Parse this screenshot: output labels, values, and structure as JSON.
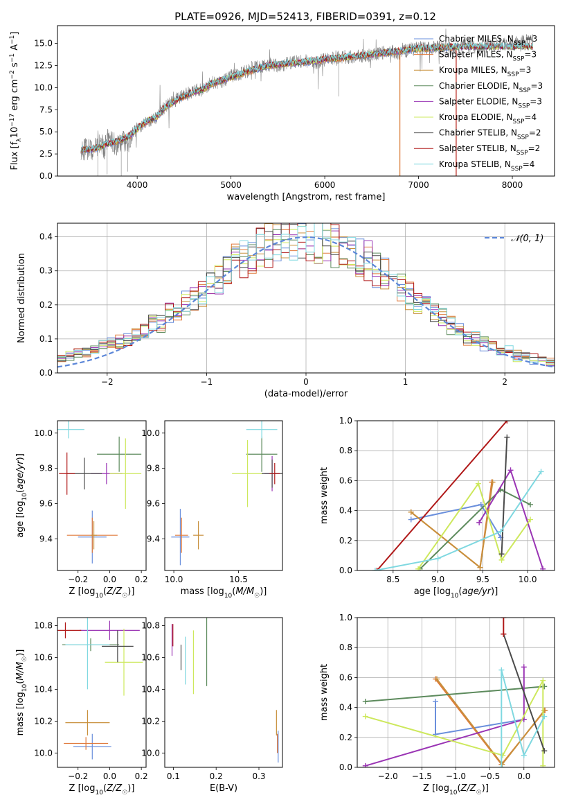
{
  "figure": {
    "title": "PLATE=0926, MJD=52413, FIBERID=0391, z=0.12"
  },
  "models": [
    {
      "name": "Chabrier MILES",
      "nssp": "3",
      "color": "#6a8fdc"
    },
    {
      "name": "Salpeter MILES",
      "nssp": "3",
      "color": "#e07a3c"
    },
    {
      "name": "Kroupa MILES",
      "nssp": "3",
      "color": "#c8903c"
    },
    {
      "name": "Chabrier ELODIE",
      "nssp": "3",
      "color": "#5c8a5c"
    },
    {
      "name": "Salpeter ELODIE",
      "nssp": "3",
      "color": "#9a34b4"
    },
    {
      "name": "Kroupa ELODIE",
      "nssp": "4",
      "color": "#cde85c"
    },
    {
      "name": "Chabrier STELIB",
      "nssp": "2",
      "color": "#4a4a4a"
    },
    {
      "name": "Salpeter STELIB",
      "nssp": "2",
      "color": "#b01818"
    },
    {
      "name": "Kroupa STELIB",
      "nssp": "4",
      "color": "#7fd8e0"
    }
  ],
  "data_color": "#808080",
  "chart_data": [
    {
      "id": "spectrum",
      "type": "line",
      "xlabel": "wavelength [Angstrom, rest frame]",
      "ylabel": "Flux [f_λ10^-17 erg cm^-2 s^-1 A^-1]",
      "xlim": [
        3150,
        8450
      ],
      "ylim": [
        0,
        17
      ],
      "xticks": [
        4000,
        5000,
        6000,
        7000,
        8000
      ],
      "yticks": [
        0.0,
        2.5,
        5.0,
        7.5,
        10.0,
        12.5,
        15.0
      ],
      "grid": false,
      "legend": "top-right",
      "series": [
        {
          "name": "data",
          "x": [
            3400,
            3500,
            3550,
            3600,
            3650,
            3700,
            3750,
            3800,
            3850,
            3900,
            3950,
            4000,
            4100,
            4200,
            4300,
            4400,
            4500,
            4600,
            4700,
            4800,
            4900,
            5000,
            5100,
            5200,
            5300,
            5400,
            5500,
            5600,
            5700,
            5800,
            5900,
            6000,
            6100,
            6200,
            6300,
            6400,
            6500,
            6600,
            6700,
            6800,
            6900,
            7000,
            7100,
            7200,
            7300,
            7400,
            7500,
            7600,
            7700,
            7800,
            7900,
            8000,
            8100,
            8200
          ],
          "y": [
            3.1,
            2.9,
            3.2,
            3.8,
            3.2,
            4.6,
            3.8,
            3.3,
            4.0,
            3.6,
            4.8,
            5.4,
            6.2,
            6.6,
            7.9,
            8.6,
            9.1,
            9.6,
            9.8,
            10.6,
            10.7,
            11.3,
            11.5,
            12.0,
            12.4,
            12.6,
            12.5,
            12.7,
            12.9,
            13.0,
            12.8,
            13.2,
            13.4,
            13.5,
            13.4,
            13.6,
            13.7,
            13.9,
            14.1,
            13.9,
            14.3,
            14.5,
            14.4,
            14.6,
            14.4,
            14.6,
            14.8,
            14.5,
            14.7,
            14.8,
            14.9,
            15.0,
            15.2,
            15.4
          ]
        },
        {
          "name": "model",
          "x": [
            3400,
            3500,
            3600,
            3700,
            3800,
            3900,
            4000,
            4100,
            4200,
            4300,
            4400,
            4500,
            4600,
            4700,
            4800,
            4900,
            5000,
            5200,
            5400,
            5600,
            5800,
            6000,
            6200,
            6400,
            6600,
            6800,
            7000,
            7200,
            7400
          ],
          "y": [
            3.0,
            3.0,
            3.3,
            3.7,
            4.0,
            4.4,
            5.3,
            6.2,
            6.6,
            7.8,
            8.5,
            9.0,
            9.5,
            9.8,
            10.5,
            10.8,
            11.2,
            11.9,
            12.5,
            12.7,
            12.9,
            13.2,
            13.4,
            13.6,
            13.9,
            14.1,
            14.4,
            14.5,
            14.6
          ]
        }
      ]
    },
    {
      "id": "residuals",
      "type": "line",
      "xlabel": "(data-model)/error",
      "ylabel": "Normed distribution",
      "xlim": [
        -2.5,
        2.5
      ],
      "ylim": [
        0,
        0.44
      ],
      "xticks": [
        -2,
        -1,
        0,
        1,
        2
      ],
      "yticks": [
        0.0,
        0.1,
        0.2,
        0.3,
        0.4
      ],
      "grid": true,
      "legend": "top-right",
      "legend_label": "𝒩(0, 1)",
      "curve": "standard normal pdf",
      "curve_color": "#5b86d8",
      "bin_width": 0.1,
      "hist_base": [
        0.05,
        0.05,
        0.06,
        0.06,
        0.07,
        0.08,
        0.09,
        0.09,
        0.1,
        0.11,
        0.12,
        0.14,
        0.15,
        0.17,
        0.19,
        0.2,
        0.22,
        0.24,
        0.26,
        0.28,
        0.3,
        0.32,
        0.34,
        0.35,
        0.37,
        0.38,
        0.39,
        0.39,
        0.39,
        0.4,
        0.4,
        0.39,
        0.39,
        0.38,
        0.37,
        0.36,
        0.34,
        0.33,
        0.31,
        0.29,
        0.27,
        0.25,
        0.23,
        0.21,
        0.19,
        0.18,
        0.16,
        0.14,
        0.13,
        0.11,
        0.1,
        0.09,
        0.08,
        0.07,
        0.06,
        0.05,
        0.05,
        0.04,
        0.04,
        0.03
      ]
    },
    {
      "id": "age-vs-Z",
      "type": "scatter",
      "xlabel": "Z [log10(Z/Z☉)]",
      "ylabel": "age  [log10(age/yr)]",
      "xlim": [
        -0.33,
        0.23
      ],
      "ylim": [
        9.22,
        10.07
      ],
      "xticks": [
        -0.2,
        0.0,
        0.2
      ],
      "yticks": [
        9.4,
        9.6,
        9.8,
        10.0
      ],
      "grid": false,
      "points": [
        {
          "x": -0.11,
          "y": 9.41,
          "xerr": 0.09,
          "yerr": 0.15,
          "model": 0
        },
        {
          "x": -0.11,
          "y": 9.42,
          "xerr": 0.16,
          "yerr": 0.1,
          "model": 1
        },
        {
          "x": -0.1,
          "y": 9.42,
          "xerr": 0.02,
          "yerr": 0.08,
          "model": 2
        },
        {
          "x": 0.06,
          "y": 9.88,
          "xerr": 0.14,
          "yerr": 0.1,
          "model": 3
        },
        {
          "x": -0.02,
          "y": 9.77,
          "xerr": 0.1,
          "yerr": 0.06,
          "model": 4
        },
        {
          "x": 0.1,
          "y": 9.77,
          "xerr": 0.1,
          "yerr": 0.2,
          "model": 5
        },
        {
          "x": -0.16,
          "y": 9.77,
          "xerr": 0.11,
          "yerr": 0.09,
          "model": 6
        },
        {
          "x": -0.27,
          "y": 9.77,
          "xerr": 0.05,
          "yerr": 0.12,
          "model": 7
        },
        {
          "x": -0.26,
          "y": 10.02,
          "xerr": 0.1,
          "yerr": 0.05,
          "model": 8
        }
      ]
    },
    {
      "id": "age-vs-mass",
      "type": "scatter",
      "xlabel": "mass [log10(M/M☉)]",
      "ylabel": "",
      "xlim": [
        9.93,
        10.84
      ],
      "ylim": [
        9.22,
        10.07
      ],
      "xticks": [
        10.0,
        10.5
      ],
      "yticks": [
        9.4,
        9.6,
        9.8,
        10.0
      ],
      "grid": false,
      "points": [
        {
          "x": 10.05,
          "y": 9.41,
          "xerr": 0.07,
          "yerr": 0.16,
          "model": 0
        },
        {
          "x": 10.06,
          "y": 9.42,
          "xerr": 0.05,
          "yerr": 0.1,
          "model": 1
        },
        {
          "x": 10.19,
          "y": 9.42,
          "xerr": 0.04,
          "yerr": 0.08,
          "model": 2
        },
        {
          "x": 10.68,
          "y": 9.88,
          "xerr": 0.12,
          "yerr": 0.1,
          "model": 3
        },
        {
          "x": 10.76,
          "y": 9.77,
          "xerr": 0.06,
          "yerr": 0.1,
          "model": 4
        },
        {
          "x": 10.57,
          "y": 9.77,
          "xerr": 0.12,
          "yerr": 0.19,
          "model": 5
        },
        {
          "x": 10.76,
          "y": 9.77,
          "xerr": 0.08,
          "yerr": 0.08,
          "model": 6
        },
        {
          "x": 10.78,
          "y": 9.77,
          "xerr": 0.04,
          "yerr": 0.06,
          "model": 7
        },
        {
          "x": 10.68,
          "y": 10.02,
          "xerr": 0.12,
          "yerr": 0.05,
          "model": 8
        }
      ]
    },
    {
      "id": "weight-vs-age",
      "type": "line",
      "xlabel": "age  [log10(age/yr)]",
      "ylabel": "mass weight",
      "xlim": [
        8.1,
        10.3
      ],
      "ylim": [
        0.0,
        1.0
      ],
      "xticks": [
        8.5,
        9.0,
        9.5,
        10.0
      ],
      "yticks": [
        0.0,
        0.2,
        0.4,
        0.6,
        0.8,
        1.0
      ],
      "grid": true,
      "series": [
        {
          "model": 0,
          "points": [
            [
              8.7,
              0.34
            ],
            [
              9.48,
              0.44
            ],
            [
              9.7,
              0.22
            ]
          ]
        },
        {
          "model": 1,
          "points": [
            [
              8.7,
              0.39
            ],
            [
              9.47,
              0.02
            ],
            [
              9.6,
              0.59
            ]
          ]
        },
        {
          "model": 2,
          "points": [
            [
              8.7,
              0.39
            ],
            [
              9.47,
              0.02
            ],
            [
              9.61,
              0.59
            ]
          ]
        },
        {
          "model": 3,
          "points": [
            [
              8.8,
              0.01
            ],
            [
              9.7,
              0.54
            ],
            [
              10.03,
              0.44
            ]
          ]
        },
        {
          "model": 4,
          "points": [
            [
              9.46,
              0.32
            ],
            [
              9.81,
              0.67
            ],
            [
              10.17,
              0.01
            ]
          ]
        },
        {
          "model": 5,
          "points": [
            [
              8.78,
              0.01
            ],
            [
              9.45,
              0.58
            ],
            [
              9.71,
              0.07
            ],
            [
              10.03,
              0.34
            ]
          ]
        },
        {
          "model": 6,
          "points": [
            [
              9.71,
              0.11
            ],
            [
              9.77,
              0.89
            ]
          ]
        },
        {
          "model": 7,
          "points": [
            [
              8.32,
              0.0
            ],
            [
              9.77,
              1.0
            ]
          ]
        },
        {
          "model": 8,
          "points": [
            [
              8.3,
              0.0
            ],
            [
              9.0,
              0.08
            ],
            [
              9.7,
              0.26
            ],
            [
              10.15,
              0.66
            ]
          ]
        }
      ]
    },
    {
      "id": "mass-vs-Z",
      "type": "scatter",
      "xlabel": "Z [log10(Z/Z☉)]",
      "ylabel": "mass [log10(M/M☉)]",
      "xlim": [
        -0.33,
        0.23
      ],
      "ylim": [
        9.91,
        10.85
      ],
      "xticks": [
        -0.2,
        0.0,
        0.2
      ],
      "yticks": [
        10.0,
        10.2,
        10.4,
        10.6,
        10.8
      ],
      "grid": false,
      "points": [
        {
          "x": -0.11,
          "y": 10.04,
          "xerr": 0.12,
          "yerr": 0.08,
          "model": 0
        },
        {
          "x": -0.15,
          "y": 10.06,
          "xerr": 0.14,
          "yerr": 0.04,
          "model": 1
        },
        {
          "x": -0.14,
          "y": 10.19,
          "xerr": 0.14,
          "yerr": 0.08,
          "model": 2
        },
        {
          "x": -0.12,
          "y": 10.68,
          "xerr": 0.18,
          "yerr": 0.04,
          "model": 3
        },
        {
          "x": 0.0,
          "y": 10.77,
          "xerr": 0.19,
          "yerr": 0.06,
          "model": 4
        },
        {
          "x": 0.09,
          "y": 10.57,
          "xerr": 0.12,
          "yerr": 0.21,
          "model": 5
        },
        {
          "x": 0.05,
          "y": 10.67,
          "xerr": 0.1,
          "yerr": 0.1,
          "model": 6
        },
        {
          "x": -0.28,
          "y": 10.77,
          "xerr": 0.1,
          "yerr": 0.05,
          "model": 7
        },
        {
          "x": -0.14,
          "y": 10.68,
          "xerr": 0.14,
          "yerr": 0.28,
          "model": 8
        }
      ]
    },
    {
      "id": "mass-vs-ebv",
      "type": "scatter",
      "xlabel": "E(B-V)",
      "ylabel": "",
      "xlim": [
        0.08,
        0.355
      ],
      "ylim": [
        9.91,
        10.85
      ],
      "xticks": [
        0.1,
        0.2,
        0.3
      ],
      "yticks": [
        10.0,
        10.2,
        10.4,
        10.6,
        10.8
      ],
      "grid": false,
      "points": [
        {
          "x": 0.345,
          "y": 10.04,
          "xerr": 0.0,
          "yerr": 0.1,
          "model": 0
        },
        {
          "x": 0.343,
          "y": 10.06,
          "xerr": 0.0,
          "yerr": 0.06,
          "model": 1
        },
        {
          "x": 0.341,
          "y": 10.19,
          "xerr": 0.0,
          "yerr": 0.08,
          "model": 2
        },
        {
          "x": 0.178,
          "y": 10.67,
          "xerr": 0.0,
          "yerr": 0.25,
          "model": 3
        },
        {
          "x": 0.097,
          "y": 10.71,
          "xerr": 0.0,
          "yerr": 0.1,
          "model": 4
        },
        {
          "x": 0.147,
          "y": 10.57,
          "xerr": 0.0,
          "yerr": 0.2,
          "model": 5
        },
        {
          "x": 0.118,
          "y": 10.6,
          "xerr": 0.0,
          "yerr": 0.08,
          "model": 6
        },
        {
          "x": 0.099,
          "y": 10.74,
          "xerr": 0.0,
          "yerr": 0.07,
          "model": 7
        },
        {
          "x": 0.128,
          "y": 10.58,
          "xerr": 0.0,
          "yerr": 0.15,
          "model": 8
        }
      ]
    },
    {
      "id": "weight-vs-Z",
      "type": "line",
      "xlabel": "Z [log10(Z/Z☉)]",
      "ylabel": "mass weight",
      "xlim": [
        -2.45,
        0.45
      ],
      "ylim": [
        0.0,
        1.0
      ],
      "xticks": [
        -2.0,
        -1.5,
        -1.0,
        -0.5,
        0.0
      ],
      "yticks": [
        0.0,
        0.2,
        0.4,
        0.6,
        0.8,
        1.0
      ],
      "grid": true,
      "series": [
        {
          "model": 0,
          "points": [
            [
              -1.3,
              0.44
            ],
            [
              -1.3,
              0.22
            ],
            [
              0.0,
              0.32
            ]
          ]
        },
        {
          "model": 1,
          "points": [
            [
              -1.3,
              0.59
            ],
            [
              -0.33,
              0.02
            ],
            [
              0.31,
              0.38
            ]
          ]
        },
        {
          "model": 2,
          "points": [
            [
              -1.28,
              0.59
            ],
            [
              -0.32,
              0.02
            ],
            [
              0.3,
              0.38
            ]
          ]
        },
        {
          "model": 3,
          "points": [
            [
              -2.33,
              0.44
            ],
            [
              0.3,
              0.54
            ]
          ]
        },
        {
          "model": 4,
          "points": [
            [
              -2.33,
              0.01
            ],
            [
              0.0,
              0.32
            ],
            [
              0.0,
              0.67
            ]
          ]
        },
        {
          "model": 5,
          "points": [
            [
              -2.33,
              0.34
            ],
            [
              -0.31,
              0.08
            ],
            [
              0.28,
              0.58
            ],
            [
              0.28,
              0.01
            ]
          ]
        },
        {
          "model": 6,
          "points": [
            [
              -0.3,
              0.89
            ],
            [
              0.3,
              0.11
            ]
          ]
        },
        {
          "model": 7,
          "points": [
            [
              -0.3,
              0.89
            ],
            [
              -0.3,
              1.0
            ]
          ]
        },
        {
          "model": 8,
          "points": [
            [
              -0.33,
              0.0
            ],
            [
              -0.33,
              0.65
            ],
            [
              0.0,
              0.08
            ],
            [
              0.3,
              0.34
            ]
          ]
        }
      ]
    }
  ]
}
